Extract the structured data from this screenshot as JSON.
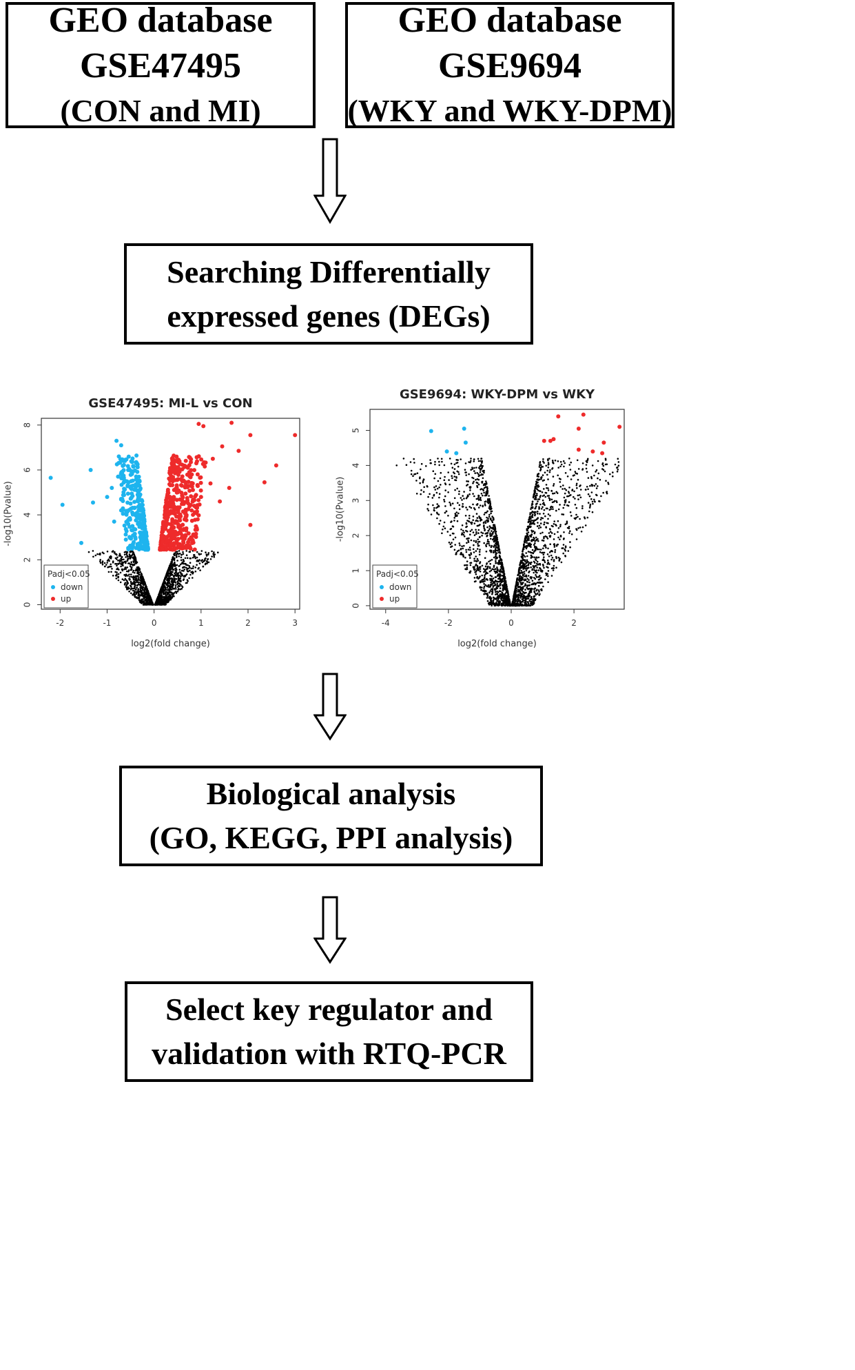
{
  "boxes": {
    "gse47495": {
      "line1": "GEO database",
      "line2": "GSE47495",
      "line3": "(CON and MI)"
    },
    "gse9694": {
      "line1": "GEO database",
      "line2": "GSE9694",
      "line3": "(WKY and WKY-DPM)"
    },
    "degs": {
      "line1": "Searching Differentially",
      "line2": "expressed genes (DEGs)"
    },
    "bio": {
      "line1": "Biological analysis",
      "line2": "(GO, KEGG, PPI analysis)"
    },
    "select": {
      "line1": "Select key regulator and",
      "line2": "validation with RTQ-PCR"
    }
  },
  "colors": {
    "down": "#1eb4ee",
    "up": "#ee2b2b",
    "ns": "#000000"
  },
  "chart_data": [
    {
      "type": "scatter",
      "title": "GSE47495: MI-L vs CON",
      "xlabel": "log2(fold change)",
      "ylabel": "-log10(Pvalue)",
      "xlim": [
        -2.4,
        3.1
      ],
      "ylim": [
        -0.2,
        8.3
      ],
      "xticks": [
        -2,
        -1,
        0,
        1,
        2,
        3
      ],
      "yticks": [
        0,
        2,
        4,
        6,
        8
      ],
      "legend": {
        "title": "Padj<0.05",
        "entries": [
          "down",
          "up"
        ],
        "position": "bottom-left"
      },
      "series": [
        {
          "name": "down",
          "points": [
            [
              -2.2,
              5.65
            ],
            [
              -1.95,
              4.45
            ],
            [
              -1.35,
              6.0
            ],
            [
              -1.3,
              4.55
            ],
            [
              -1.55,
              2.75
            ],
            [
              -0.8,
              7.3
            ],
            [
              -0.7,
              7.1
            ],
            [
              -0.75,
              6.6
            ],
            [
              -0.65,
              6.4
            ],
            [
              -0.55,
              6.0
            ],
            [
              -0.9,
              5.2
            ],
            [
              -1.0,
              4.8
            ],
            [
              -0.6,
              5.5
            ],
            [
              -0.45,
              5.3
            ],
            [
              -0.35,
              4.9
            ],
            [
              -0.5,
              4.5
            ],
            [
              -0.3,
              4.0
            ],
            [
              -0.25,
              3.4
            ],
            [
              -0.4,
              3.0
            ],
            [
              -0.2,
              2.7
            ],
            [
              -0.6,
              2.9
            ],
            [
              -0.85,
              3.7
            ],
            [
              -0.7,
              4.2
            ],
            [
              -0.55,
              3.6
            ],
            [
              -0.45,
              2.6
            ]
          ]
        },
        {
          "name": "up",
          "points": [
            [
              0.95,
              8.05
            ],
            [
              1.05,
              7.95
            ],
            [
              1.65,
              8.1
            ],
            [
              2.05,
              7.55
            ],
            [
              3.0,
              7.55
            ],
            [
              2.6,
              6.2
            ],
            [
              2.35,
              5.45
            ],
            [
              2.05,
              3.55
            ],
            [
              1.8,
              6.85
            ],
            [
              1.45,
              7.05
            ],
            [
              1.25,
              6.5
            ],
            [
              0.9,
              6.3
            ],
            [
              0.75,
              5.9
            ],
            [
              0.6,
              5.5
            ],
            [
              0.5,
              5.0
            ],
            [
              0.4,
              4.5
            ],
            [
              0.3,
              4.0
            ],
            [
              0.25,
              3.5
            ],
            [
              0.2,
              3.0
            ],
            [
              0.35,
              2.7
            ],
            [
              0.55,
              3.2
            ],
            [
              0.8,
              4.2
            ],
            [
              1.0,
              4.8
            ],
            [
              1.2,
              5.4
            ],
            [
              0.65,
              3.8
            ],
            [
              1.4,
              4.6
            ],
            [
              1.6,
              5.2
            ]
          ]
        }
      ]
    },
    {
      "type": "scatter",
      "title": "GSE9694: WKY-DPM vs WKY",
      "xlabel": "log2(fold change)",
      "ylabel": "-log10(Pvalue)",
      "xlim": [
        -4.5,
        3.6
      ],
      "ylim": [
        -0.1,
        5.6
      ],
      "xticks": [
        -4,
        -2,
        0,
        2
      ],
      "yticks": [
        0,
        1,
        2,
        3,
        4,
        5
      ],
      "legend": {
        "title": "Padj<0.05",
        "entries": [
          "down",
          "up"
        ],
        "position": "bottom-left"
      },
      "series": [
        {
          "name": "down",
          "points": [
            [
              -2.55,
              4.98
            ],
            [
              -1.5,
              5.05
            ],
            [
              -1.45,
              4.65
            ],
            [
              -1.75,
              4.35
            ],
            [
              -2.05,
              4.4
            ]
          ]
        },
        {
          "name": "up",
          "points": [
            [
              1.5,
              5.4
            ],
            [
              2.3,
              5.45
            ],
            [
              3.45,
              5.1
            ],
            [
              2.15,
              5.05
            ],
            [
              2.95,
              4.65
            ],
            [
              1.05,
              4.7
            ],
            [
              1.25,
              4.7
            ],
            [
              1.35,
              4.75
            ],
            [
              2.15,
              4.45
            ],
            [
              2.6,
              4.4
            ],
            [
              2.9,
              4.35
            ]
          ]
        }
      ]
    }
  ]
}
